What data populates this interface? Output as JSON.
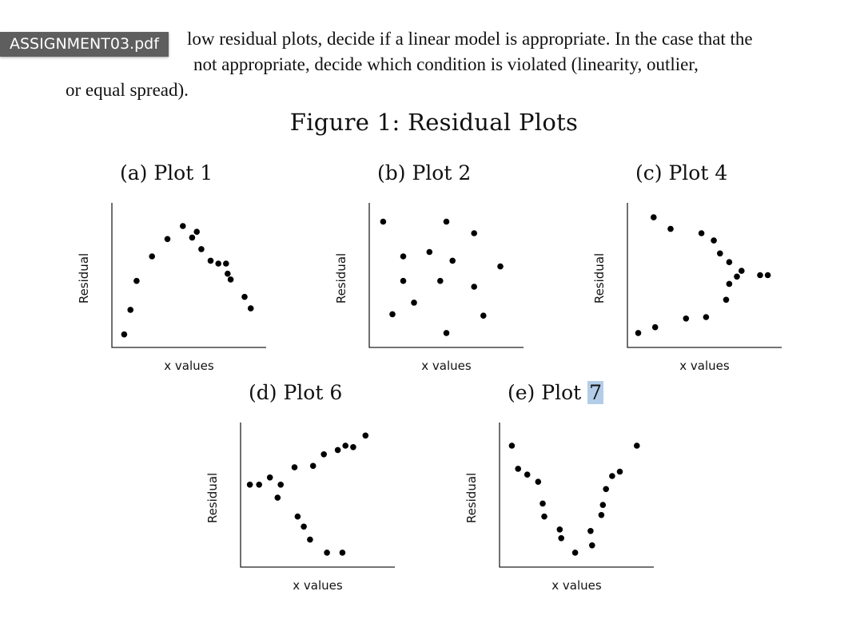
{
  "document": {
    "filename_badge": "ASSIGNMENT03.pdf",
    "intro_lines": [
      "low residual plots, decide if a linear model is appropriate. In the case that the",
      "not appropriate, decide which condition is violated (linearity, outlier,",
      "or equal spread)."
    ],
    "figure_title": "Figure 1: Residual Plots"
  },
  "chart_data": [
    {
      "type": "scatter",
      "label": "(a) Plot 1",
      "caption_prefix": "(a) Plot ",
      "caption_num": "1",
      "xlabel": "x values",
      "ylabel": "Residual",
      "xlim": [
        0,
        10
      ],
      "ylim": [
        0,
        10
      ],
      "x": [
        0.8,
        1.2,
        1.6,
        2.6,
        3.6,
        4.6,
        5.2,
        5.5,
        5.8,
        6.4,
        6.9,
        7.4,
        7.5,
        7.7,
        8.6,
        9.0
      ],
      "y": [
        0.9,
        2.6,
        4.6,
        6.3,
        7.5,
        8.4,
        7.6,
        8.0,
        6.8,
        6.0,
        5.8,
        5.8,
        5.1,
        4.7,
        3.5,
        2.7
      ]
    },
    {
      "type": "scatter",
      "label": "(b) Plot 2",
      "caption_prefix": "(b) Plot ",
      "caption_num": "2",
      "xlabel": "x values",
      "ylabel": "Residual",
      "xlim": [
        0,
        10
      ],
      "ylim": [
        0,
        10
      ],
      "x": [
        0.9,
        1.5,
        2.2,
        2.2,
        2.9,
        3.9,
        4.6,
        5.0,
        5.0,
        5.4,
        6.8,
        6.8,
        7.4,
        8.5
      ],
      "y": [
        8.7,
        2.3,
        6.3,
        4.6,
        3.1,
        6.6,
        4.6,
        8.7,
        1.0,
        6.0,
        7.9,
        4.2,
        2.2,
        5.6
      ]
    },
    {
      "type": "scatter",
      "label": "(c) Plot 4",
      "caption_prefix": "(c) Plot ",
      "caption_num": "4",
      "xlabel": "x values",
      "ylabel": "Residual",
      "xlim": [
        0,
        10
      ],
      "ylim": [
        0,
        10
      ],
      "x": [
        0.7,
        1.7,
        1.8,
        2.8,
        3.8,
        4.8,
        5.1,
        5.6,
        6.0,
        6.4,
        6.6,
        6.6,
        7.1,
        7.4,
        8.6,
        9.1
      ],
      "y": [
        1.0,
        9.0,
        1.4,
        8.2,
        2.0,
        7.9,
        2.1,
        7.4,
        6.5,
        3.3,
        5.9,
        4.4,
        4.9,
        5.3,
        5.0,
        5.0
      ]
    },
    {
      "type": "scatter",
      "label": "(d) Plot 6",
      "caption_prefix": "(d) Plot ",
      "caption_num": "6",
      "xlabel": "x values",
      "ylabel": "Residual",
      "xlim": [
        0,
        10
      ],
      "ylim": [
        0,
        10
      ],
      "x": [
        0.6,
        1.2,
        1.9,
        2.4,
        2.6,
        3.5,
        3.7,
        4.1,
        4.5,
        4.7,
        5.4,
        5.6,
        6.3,
        6.6,
        6.8,
        7.3,
        8.1
      ],
      "y": [
        5.7,
        5.7,
        6.2,
        4.8,
        5.7,
        6.9,
        3.5,
        2.8,
        1.9,
        7.0,
        7.8,
        1.0,
        8.1,
        1.0,
        8.4,
        8.3,
        9.1
      ]
    },
    {
      "type": "scatter",
      "label": "(e) Plot 7",
      "caption_prefix": "(e) Plot ",
      "caption_num": "7",
      "xlabel": "x values",
      "ylabel": "Residual",
      "xlim": [
        0,
        10
      ],
      "ylim": [
        0,
        10
      ],
      "x": [
        0.8,
        1.2,
        1.8,
        2.5,
        2.8,
        2.9,
        3.9,
        4.0,
        4.9,
        5.9,
        6.0,
        6.6,
        6.7,
        6.9,
        7.3,
        7.8,
        8.9
      ],
      "y": [
        8.4,
        6.8,
        6.4,
        5.9,
        4.4,
        3.5,
        2.6,
        2.0,
        1.0,
        2.5,
        1.5,
        3.6,
        4.3,
        5.4,
        6.3,
        6.6,
        8.4
      ]
    }
  ]
}
